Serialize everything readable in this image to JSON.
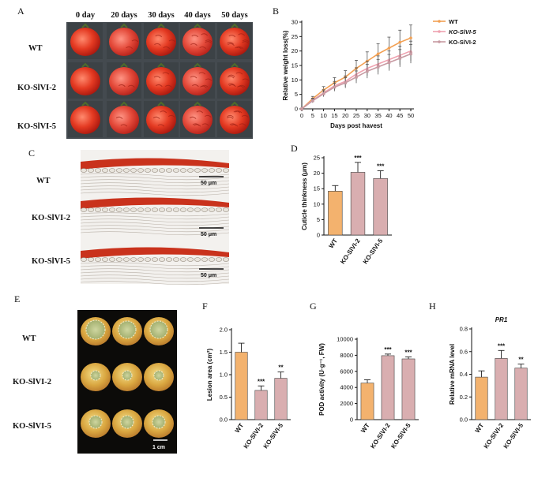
{
  "figure": {
    "panels": {
      "a": "A",
      "b": "B",
      "c": "C",
      "d": "D",
      "e": "E",
      "f": "F",
      "g": "G",
      "h": "H"
    },
    "lines": {
      "wt": "WT",
      "ko2": "KO-SlVI-2",
      "ko5": "KO-SlVI-5"
    },
    "days": [
      "0 day",
      "20 days",
      "30 days",
      "40 days",
      "50 days"
    ],
    "scale_bar_c": "50 μm",
    "scale_bar_e": "1 cm"
  },
  "colors": {
    "wt": "#f3b26e",
    "ko": "#d9aeb0",
    "wt_line": "#f2a053",
    "ko5_line": "#efa2b0",
    "ko2_line": "#c79aa2"
  },
  "chart_data": [
    {
      "id": "B",
      "type": "line",
      "title": "",
      "xlabel": "Days post havest",
      "ylabel": "Relative weight loss(%)",
      "x": [
        0,
        5,
        10,
        15,
        20,
        25,
        30,
        35,
        40,
        45,
        50
      ],
      "xlim": [
        0,
        50
      ],
      "ylim": [
        0,
        30
      ],
      "yticks": [
        0,
        5,
        10,
        15,
        20,
        25,
        30
      ],
      "series": [
        {
          "name": "WT",
          "values": [
            0,
            3.5,
            6.5,
            9,
            11,
            14,
            16.5,
            19,
            21,
            23,
            24.5
          ],
          "errors": [
            0,
            0.8,
            1.2,
            1.8,
            2.2,
            2.8,
            3.2,
            3.5,
            3.8,
            4.2,
            4.5
          ]
        },
        {
          "name": "KO-SlVI-5",
          "values": [
            0,
            3,
            5.5,
            8,
            9.5,
            12,
            14,
            15.5,
            17,
            18.5,
            20
          ],
          "errors": [
            0,
            0.7,
            1.1,
            1.5,
            1.9,
            2.2,
            2.5,
            2.8,
            3.0,
            3.2,
            3.4
          ]
        },
        {
          "name": "KO-SlVI-2",
          "values": [
            0,
            2.8,
            5.2,
            7.5,
            9,
            11,
            13,
            14.5,
            16,
            17.5,
            19
          ],
          "errors": [
            0,
            0.7,
            1.0,
            1.4,
            1.8,
            2.1,
            2.4,
            2.6,
            2.8,
            3.0,
            3.2
          ]
        }
      ]
    },
    {
      "id": "D",
      "type": "bar",
      "ylabel": "Cuticle thinkness (μm)",
      "categories": [
        "WT",
        "KO-SlVI-2",
        "KO-SlVI-5"
      ],
      "values": [
        14.2,
        20.3,
        18.3
      ],
      "errors": [
        1.8,
        3.2,
        2.5
      ],
      "significance": [
        "",
        "***",
        "***"
      ],
      "ylim": [
        0,
        25
      ],
      "yticks": [
        0,
        5,
        10,
        15,
        20,
        25
      ]
    },
    {
      "id": "F",
      "type": "bar",
      "ylabel": "Lesion area (cm²)",
      "categories": [
        "WT",
        "KO-SlVI-2",
        "KO-SlVI-5"
      ],
      "values": [
        1.5,
        0.65,
        0.92
      ],
      "errors": [
        0.2,
        0.1,
        0.14
      ],
      "significance": [
        "",
        "***",
        "**"
      ],
      "ylim": [
        0,
        2.0
      ],
      "yticks": [
        0.0,
        0.5,
        1.0,
        1.5,
        2.0
      ],
      "tick_labels": [
        "0.0",
        "0.5",
        "1.0",
        "1.5",
        "2.0"
      ]
    },
    {
      "id": "G",
      "type": "bar",
      "ylabel": "POD activity (U·g⁻¹, FW)",
      "categories": [
        "WT",
        "KO-SlVI-2",
        "KO-SlVI-5"
      ],
      "values": [
        4550,
        7950,
        7550
      ],
      "errors": [
        400,
        200,
        250
      ],
      "significance": [
        "",
        "***",
        "***"
      ],
      "ylim": [
        0,
        10000
      ],
      "yticks": [
        0,
        2000,
        4000,
        6000,
        8000,
        10000
      ]
    },
    {
      "id": "H",
      "type": "bar",
      "title": "PR1",
      "ylabel": "Relative mRNA level",
      "categories": [
        "WT",
        "KO-SlVI-2",
        "KO-SlVI-5"
      ],
      "values": [
        0.375,
        0.54,
        0.455
      ],
      "errors": [
        0.055,
        0.07,
        0.035
      ],
      "significance": [
        "",
        "***",
        "**"
      ],
      "ylim": [
        0,
        0.8
      ],
      "yticks": [
        0.0,
        0.2,
        0.4,
        0.6,
        0.8
      ],
      "tick_labels": [
        "0.0",
        "0.2",
        "0.4",
        "0.6",
        "0.8"
      ]
    }
  ]
}
